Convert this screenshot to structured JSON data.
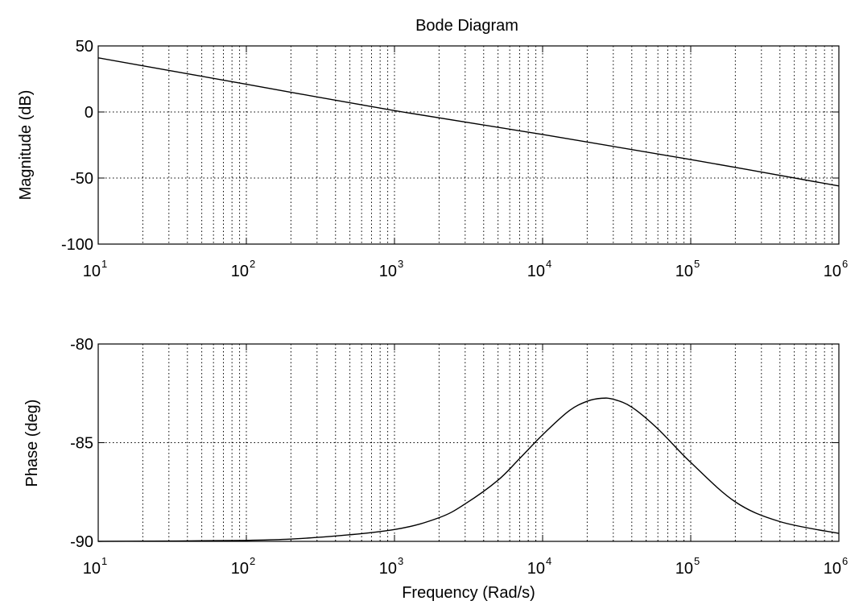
{
  "chart_data": [
    {
      "type": "line",
      "title": "Bode Diagram",
      "xlabel": "",
      "ylabel": "Magnitude (dB)",
      "xscale": "log",
      "xlim": [
        10,
        1000000
      ],
      "ylim": [
        -100,
        50
      ],
      "y_ticks": [
        -100,
        -50,
        0,
        50
      ],
      "x_tick_labels": [
        {
          "base": "10",
          "exp": "1"
        },
        {
          "base": "10",
          "exp": "2"
        },
        {
          "base": "10",
          "exp": "3"
        },
        {
          "base": "10",
          "exp": "4"
        },
        {
          "base": "10",
          "exp": "5"
        },
        {
          "base": "10",
          "exp": "6"
        }
      ],
      "grid": true,
      "series": [
        {
          "color": "#000000",
          "x": [
            10,
            100,
            1000,
            10000,
            100000,
            1000000
          ],
          "y": [
            41,
            21,
            1,
            -17,
            -36,
            -56
          ]
        }
      ]
    },
    {
      "type": "line",
      "title": "",
      "xlabel": "Frequency (Rad/s)",
      "ylabel": "Phase (deg)",
      "xscale": "log",
      "xlim": [
        10,
        1000000
      ],
      "ylim": [
        -90,
        -80
      ],
      "y_ticks": [
        -90,
        -85,
        -80
      ],
      "x_tick_labels": [
        {
          "base": "10",
          "exp": "1"
        },
        {
          "base": "10",
          "exp": "2"
        },
        {
          "base": "10",
          "exp": "3"
        },
        {
          "base": "10",
          "exp": "4"
        },
        {
          "base": "10",
          "exp": "5"
        },
        {
          "base": "10",
          "exp": "6"
        }
      ],
      "grid": true,
      "series": [
        {
          "color": "#000000",
          "x": [
            10,
            100,
            300,
            1000,
            2000,
            3000,
            5000,
            7000,
            10000,
            15000,
            20000,
            25000,
            30000,
            40000,
            60000,
            100000,
            200000,
            400000,
            1000000
          ],
          "y": [
            -90,
            -89.95,
            -89.8,
            -89.4,
            -88.8,
            -88.1,
            -86.9,
            -85.8,
            -84.6,
            -83.4,
            -82.9,
            -82.75,
            -82.8,
            -83.2,
            -84.3,
            -86.0,
            -88.0,
            -89.0,
            -89.6
          ]
        }
      ]
    }
  ]
}
